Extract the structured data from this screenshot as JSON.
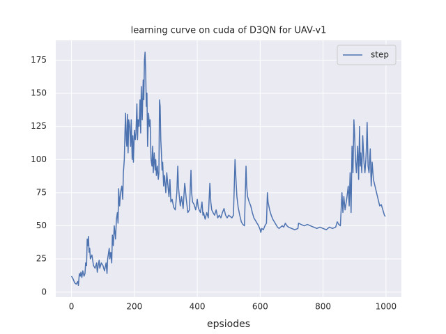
{
  "chart_data": {
    "type": "line",
    "title": "learning curve on cuda of D3QN for UAV-v1",
    "x_label": "epsiodes",
    "x": [
      0,
      5,
      10,
      15,
      20,
      22,
      25,
      28,
      30,
      33,
      36,
      40,
      43,
      45,
      48,
      50,
      52,
      54,
      56,
      58,
      60,
      65,
      70,
      75,
      80,
      82,
      85,
      88,
      90,
      95,
      100,
      105,
      110,
      113,
      115,
      120,
      122,
      125,
      128,
      130,
      133,
      136,
      140,
      143,
      146,
      148,
      150,
      153,
      156,
      160,
      163,
      165,
      168,
      170,
      172,
      174,
      176,
      178,
      180,
      182,
      185,
      188,
      190,
      193,
      195,
      197,
      200,
      203,
      205,
      208,
      210,
      212,
      215,
      218,
      220,
      222,
      225,
      228,
      230,
      232,
      234,
      236,
      238,
      240,
      242,
      245,
      248,
      250,
      253,
      256,
      258,
      260,
      263,
      266,
      268,
      270,
      273,
      276,
      278,
      280,
      282,
      284,
      286,
      288,
      290,
      293,
      296,
      300,
      303,
      306,
      310,
      313,
      316,
      320,
      325,
      330,
      335,
      338,
      340,
      343,
      346,
      350,
      355,
      360,
      362,
      365,
      370,
      375,
      380,
      382,
      385,
      390,
      395,
      400,
      403,
      406,
      410,
      415,
      418,
      420,
      425,
      430,
      435,
      440,
      443,
      446,
      450,
      455,
      460,
      465,
      470,
      475,
      480,
      485,
      490,
      495,
      500,
      505,
      510,
      515,
      520,
      523,
      526,
      530,
      535,
      540,
      545,
      550,
      555,
      557,
      560,
      565,
      570,
      575,
      580,
      585,
      590,
      595,
      600,
      602,
      605,
      610,
      615,
      620,
      623,
      625,
      630,
      635,
      640,
      645,
      650,
      655,
      660,
      665,
      670,
      675,
      680,
      685,
      690,
      700,
      710,
      720,
      722,
      730,
      740,
      750,
      760,
      770,
      780,
      790,
      800,
      810,
      820,
      830,
      840,
      845,
      850,
      855,
      860,
      863,
      866,
      870,
      875,
      880,
      883,
      886,
      889,
      892,
      895,
      898,
      900,
      903,
      906,
      910,
      913,
      916,
      918,
      920,
      923,
      926,
      930,
      933,
      936,
      938,
      940,
      943,
      946,
      950,
      953,
      956,
      960,
      965,
      970,
      975,
      980,
      985,
      990,
      995,
      998
    ],
    "series": [
      {
        "name": "step",
        "color": "#4c72b0",
        "values": [
          12,
          10,
          7,
          6,
          8,
          5,
          14,
          12,
          15,
          11,
          16,
          12,
          14,
          22,
          20,
          40,
          35,
          42,
          30,
          33,
          25,
          28,
          20,
          18,
          22,
          15,
          20,
          24,
          18,
          22,
          20,
          16,
          22,
          14,
          25,
          33,
          25,
          30,
          22,
          43,
          35,
          50,
          40,
          55,
          60,
          52,
          78,
          65,
          75,
          80,
          70,
          90,
          100,
          120,
          135,
          115,
          110,
          134,
          105,
          130,
          125,
          110,
          130,
          100,
          118,
          98,
          122,
          115,
          120,
          142,
          115,
          130,
          125,
          145,
          120,
          155,
          130,
          160,
          145,
          175,
          181,
          165,
          140,
          150,
          110,
          135,
          125,
          130,
          100,
          95,
          110,
          90,
          105,
          92,
          100,
          88,
          95,
          85,
          90,
          145,
          140,
          115,
          105,
          92,
          98,
          80,
          88,
          75,
          90,
          82,
          72,
          85,
          68,
          70,
          64,
          62,
          75,
          95,
          80,
          72,
          65,
          72,
          63,
          82,
          78,
          70,
          60,
          62,
          92,
          75,
          68,
          66,
          62,
          70,
          64,
          62,
          60,
          68,
          58,
          60,
          55,
          60,
          56,
          82,
          68,
          62,
          60,
          58,
          62,
          56,
          58,
          56,
          60,
          63,
          58,
          56,
          58,
          57,
          56,
          58,
          100,
          85,
          72,
          64,
          58,
          53,
          51,
          50,
          95,
          80,
          72,
          68,
          65,
          60,
          56,
          54,
          52,
          50,
          47,
          45,
          48,
          47,
          50,
          52,
          75,
          68,
          62,
          58,
          55,
          53,
          51,
          49,
          48,
          49,
          50,
          49,
          52,
          50,
          49,
          48,
          47,
          48,
          52,
          51,
          50,
          51,
          50,
          49,
          48,
          49,
          48,
          47,
          49,
          48,
          49,
          53,
          51,
          50,
          75,
          60,
          72,
          62,
          70,
          80,
          65,
          90,
          60,
          110,
          90,
          130,
          120,
          100,
          90,
          110,
          85,
          125,
          95,
          105,
          90,
          118,
          98,
          90,
          100,
          110,
          128,
          95,
          90,
          108,
          80,
          98,
          85,
          80,
          75,
          70,
          65,
          66,
          62,
          58,
          57
        ]
      }
    ],
    "xlim": [
      -50,
      1049
    ],
    "ylim": [
      -3.8,
      189.9
    ],
    "xticks": [
      0,
      200,
      400,
      600,
      800,
      1000
    ],
    "yticks": [
      0,
      25,
      50,
      75,
      100,
      125,
      150,
      175
    ],
    "grid": true,
    "legend": "upper right"
  }
}
